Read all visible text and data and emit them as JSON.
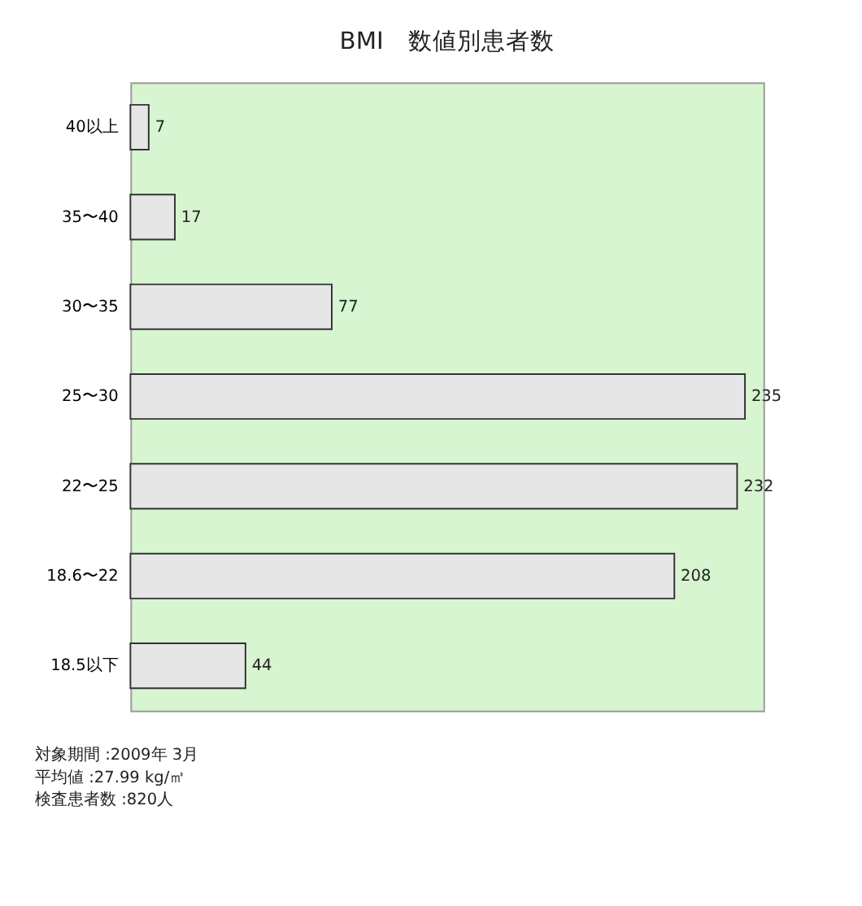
{
  "chart_data": {
    "type": "bar",
    "orientation": "horizontal",
    "title": "BMI　数値別患者数",
    "categories": [
      "40以上",
      "35〜40",
      "30〜35",
      "25〜30",
      "22〜25",
      "18.6〜22",
      "18.5以下"
    ],
    "values": [
      7,
      17,
      77,
      235,
      232,
      208,
      44
    ],
    "color": "#e6e6e6",
    "data_labels": true,
    "annotations": [
      "対象期間 :2009年 3月",
      "平均値 :27.99 kg/㎡",
      "検査患者数 :820人"
    ]
  }
}
